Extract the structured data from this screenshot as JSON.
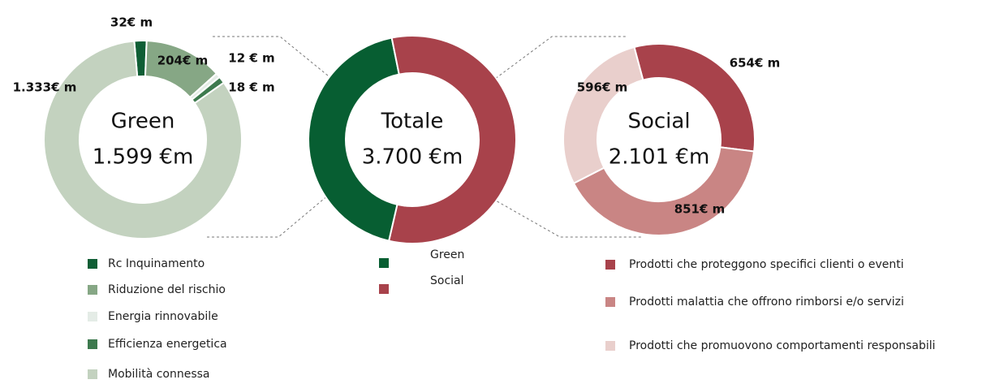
{
  "chart_data": [
    {
      "type": "donut",
      "title": "Green",
      "subtitle": "1.599 €m",
      "categories": [
        "Rc Inquinamento",
        "Riduzione del rischio",
        "Energia rinnovabile",
        "Efficienza energetica",
        "Mobilità connessa"
      ],
      "values": [
        32,
        204,
        12,
        18,
        1333
      ],
      "value_labels": [
        "32€ m",
        "204€ m",
        "12 € m",
        "18 € m",
        "1.333€ m"
      ],
      "colors": [
        "#0f5e35",
        "#86a785",
        "#e4ece6",
        "#3d7a4e",
        "#c3d2bf"
      ]
    },
    {
      "type": "donut",
      "title": "Totale",
      "subtitle": "3.700 €m",
      "categories": [
        "Green",
        "Social"
      ],
      "values": [
        1599,
        2101
      ],
      "colors": [
        "#075e32",
        "#a8424b"
      ]
    },
    {
      "type": "donut",
      "title": "Social",
      "subtitle": "2.101 €m",
      "categories": [
        "Prodotti che proteggono specifici clienti o eventi",
        "Prodotti malattia che offrono rimborsi e/o servizi",
        "Prodotti che promuovono comportamenti responsabili"
      ],
      "values": [
        654,
        851,
        596
      ],
      "value_labels": [
        "654€ m",
        "851€ m",
        "596€ m"
      ],
      "colors": [
        "#a8424b",
        "#c98584",
        "#e9cfcc"
      ]
    }
  ]
}
